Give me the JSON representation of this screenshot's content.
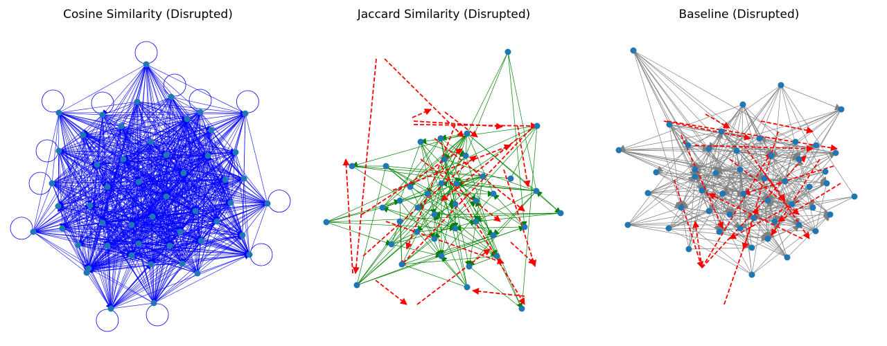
{
  "figure": {
    "panels": [
      {
        "title": "Cosine Similarity (Disrupted)",
        "edge_color": "#0000ff",
        "node_color": "#1f77b4",
        "self_loops": true,
        "disrupted_edges": false
      },
      {
        "title": "Jaccard Similarity (Disrupted)",
        "edge_color": "#008000",
        "node_color": "#1f77b4",
        "self_loops": false,
        "disrupted_edges": true,
        "disrupted_color": "#ff0000"
      },
      {
        "title": "Baseline (Disrupted)",
        "edge_color": "#808080",
        "node_color": "#1f77b4",
        "self_loops": false,
        "disrupted_edges": true,
        "disrupted_color": "#ff0000"
      }
    ]
  }
}
